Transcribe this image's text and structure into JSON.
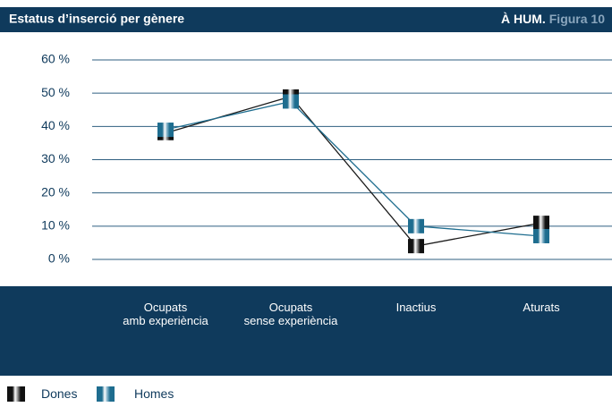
{
  "chart_data": {
    "type": "line",
    "title": "Estatus d’inserció per gènere",
    "source": "À HUM.",
    "figure": "Figura 10",
    "categories": [
      "Ocupats\namb experiència",
      "Ocupats\nsense experiència",
      "Inactius",
      "Aturats"
    ],
    "series": [
      {
        "name": "Dones",
        "color": "#1a1a1a",
        "values": [
          38,
          49,
          4,
          11
        ]
      },
      {
        "name": "Homes",
        "color": "#1e6d8f",
        "values": [
          39,
          47.5,
          10,
          7
        ]
      }
    ],
    "ylim": [
      0,
      60
    ],
    "yticks": [
      {
        "value": 0,
        "label": "0 %"
      },
      {
        "value": 10,
        "label": "10 %"
      },
      {
        "value": 20,
        "label": "20 %"
      },
      {
        "value": 30,
        "label": "30 %"
      },
      {
        "value": 40,
        "label": "40 %"
      },
      {
        "value": 50,
        "label": "50 %"
      },
      {
        "value": 60,
        "label": "60 %"
      }
    ],
    "grid": true
  }
}
